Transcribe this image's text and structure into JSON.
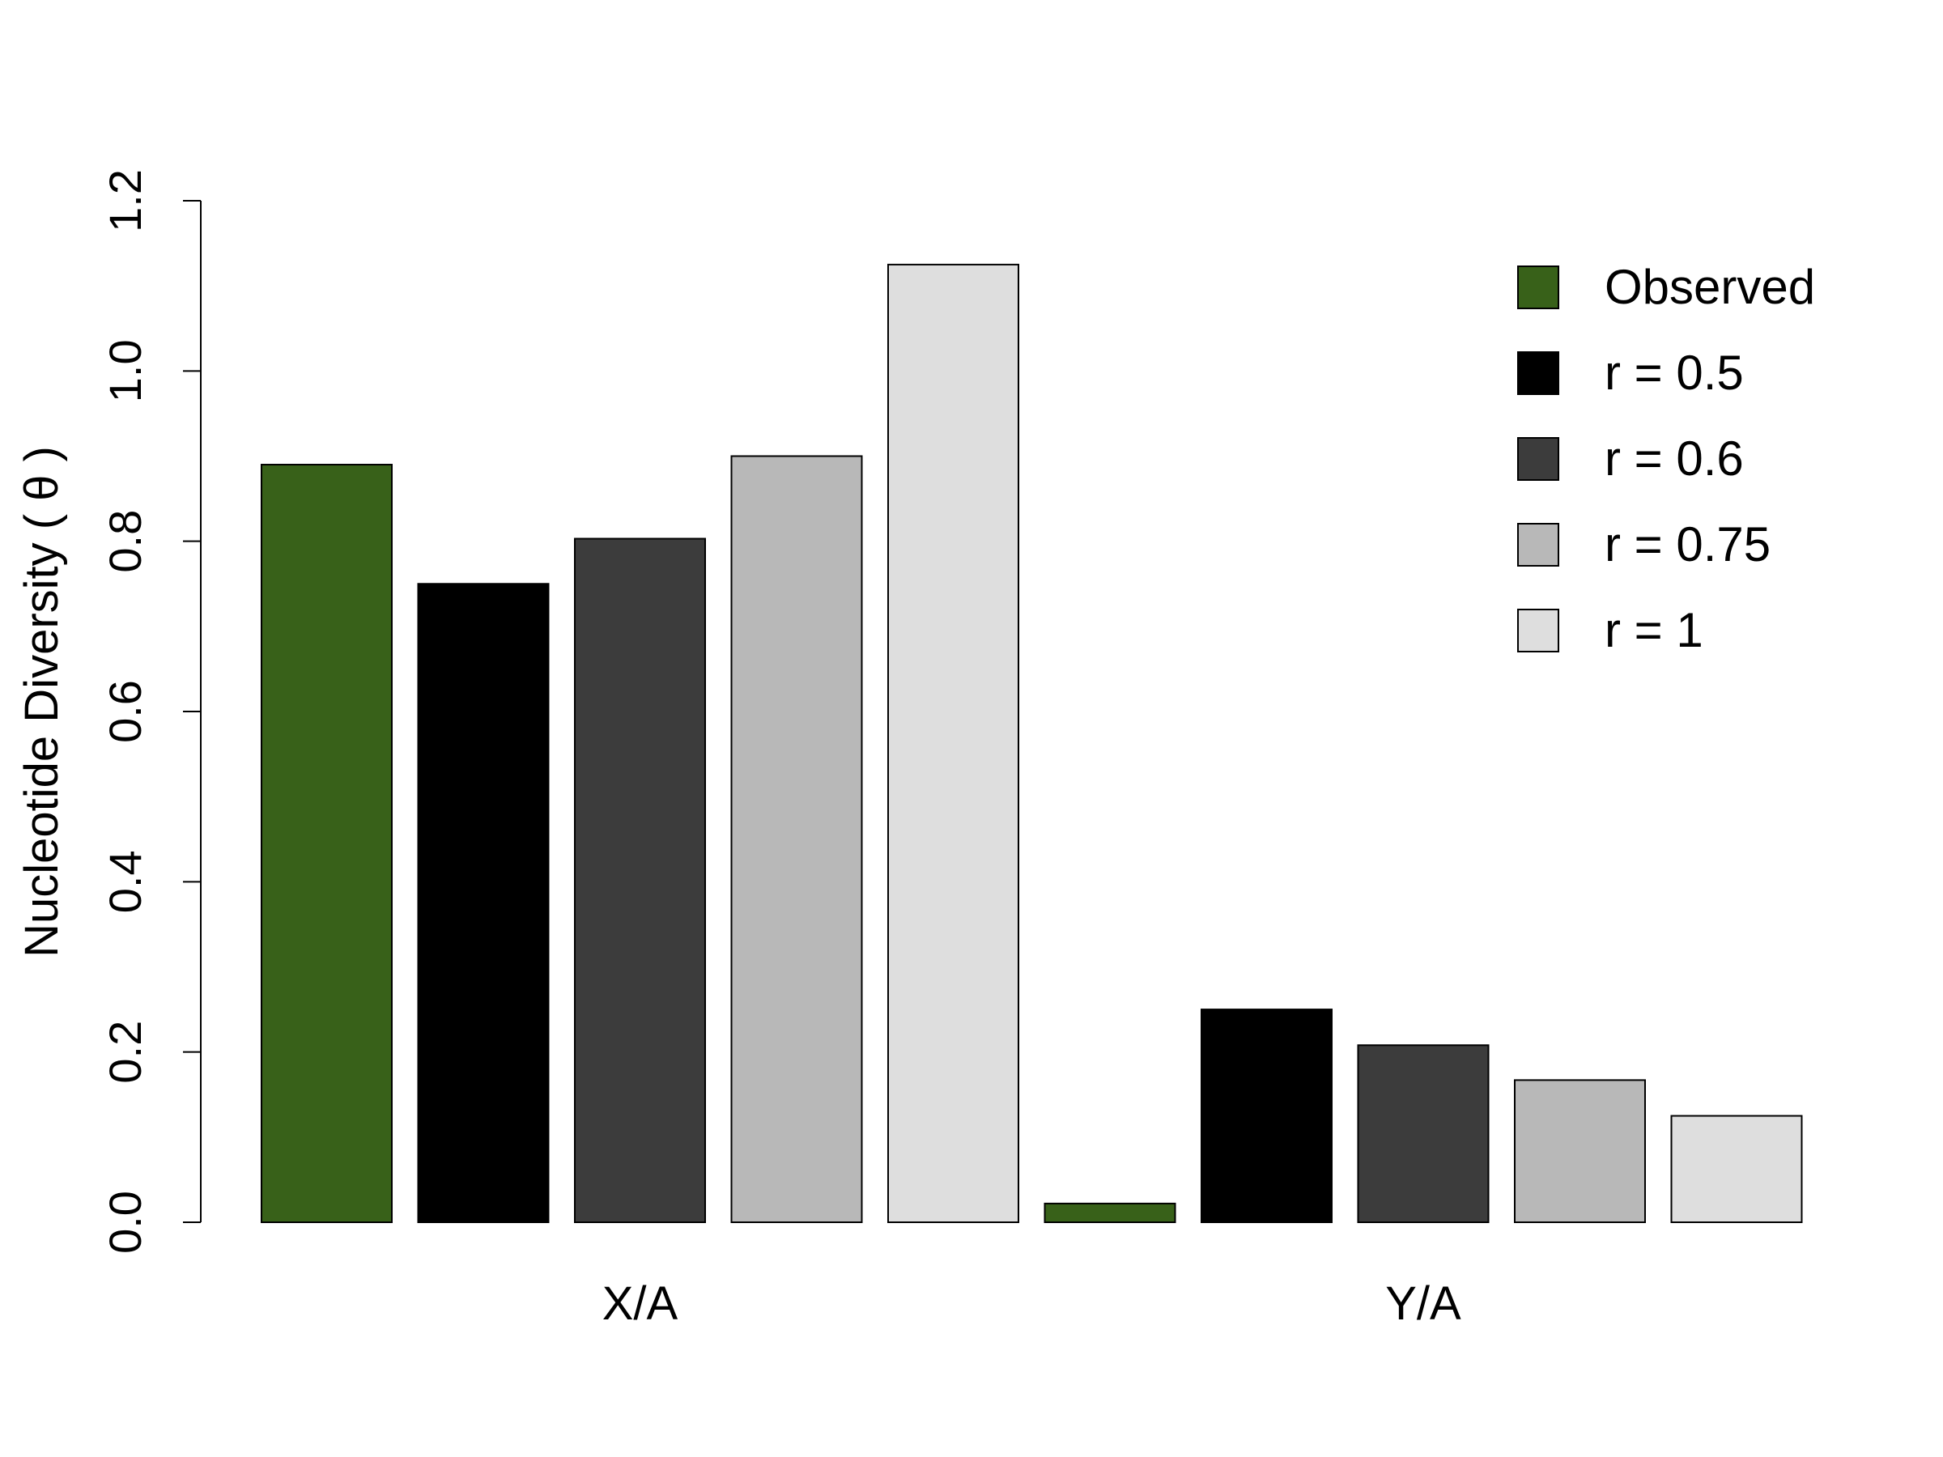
{
  "chart_data": {
    "type": "bar",
    "title": "",
    "xlabel": "",
    "ylabel": "Nucleotide Diversity ( θ )",
    "ylim": [
      0,
      1.2
    ],
    "yticks": [
      "0.0",
      "0.2",
      "0.4",
      "0.6",
      "0.8",
      "1.0",
      "1.2"
    ],
    "categories": [
      "X/A",
      "Y/A"
    ],
    "series": [
      {
        "name": "Observed",
        "color": "#386119",
        "values": [
          0.89,
          0.022
        ]
      },
      {
        "name": "r = 0.5",
        "color": "#000000",
        "values": [
          0.75,
          0.25
        ]
      },
      {
        "name": "r = 0.6",
        "color": "#3c3c3c",
        "values": [
          0.803,
          0.208
        ]
      },
      {
        "name": "r = 0.75",
        "color": "#b8b8b8",
        "values": [
          0.9,
          0.167
        ]
      },
      {
        "name": "r = 1",
        "color": "#dedede",
        "values": [
          1.125,
          0.125
        ]
      }
    ],
    "legend_position": "top-right",
    "grid": false
  }
}
